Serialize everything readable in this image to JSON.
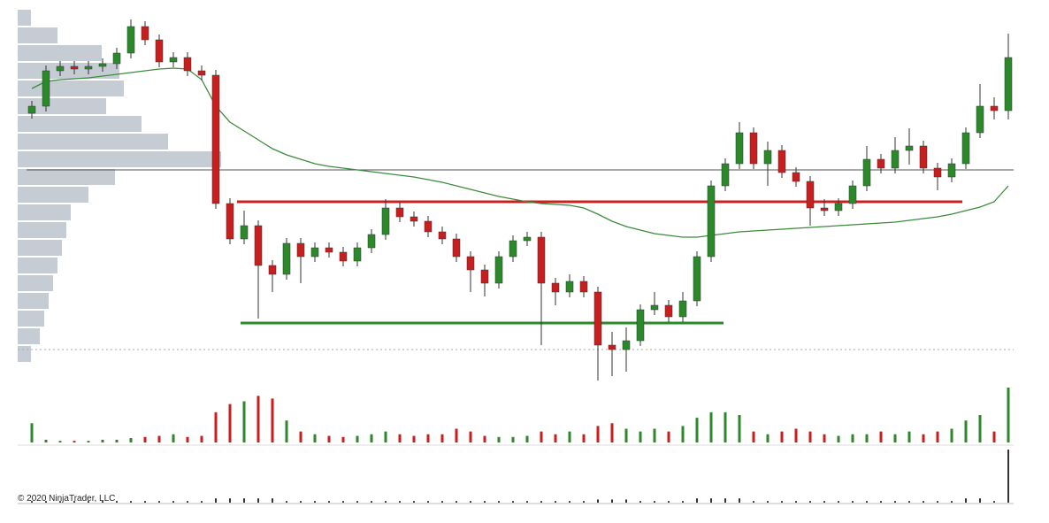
{
  "chart_data": {
    "type": "candlestick",
    "footnote": "© 2020 NinjaTrader, LLC",
    "up_color": "#2a8a2a",
    "down_color": "#c81e1e",
    "ylim": [
      70,
      500
    ],
    "candles": {
      "open": [
        372,
        380,
        420,
        425,
        422,
        425,
        428,
        440,
        470,
        455,
        430,
        435,
        420,
        415,
        270,
        230,
        245,
        200,
        190,
        225,
        210,
        220,
        215,
        205,
        220,
        235,
        265,
        255,
        250,
        238,
        230,
        210,
        195,
        180,
        210,
        228,
        232,
        180,
        170,
        182,
        170,
        110,
        105,
        115,
        150,
        155,
        142,
        160,
        210,
        290,
        315,
        350,
        315,
        330,
        305,
        295,
        265,
        262,
        270,
        290,
        320,
        310,
        330,
        335,
        310,
        300,
        315,
        350,
        380,
        375
      ],
      "high": [
        386,
        426,
        431,
        431,
        431,
        434,
        446,
        478,
        476,
        461,
        441,
        441,
        426,
        421,
        276,
        262,
        251,
        206,
        231,
        231,
        226,
        226,
        221,
        226,
        241,
        275,
        271,
        261,
        256,
        244,
        236,
        216,
        201,
        216,
        234,
        238,
        238,
        186,
        190,
        188,
        176,
        125,
        130,
        156,
        170,
        161,
        170,
        216,
        296,
        321,
        362,
        356,
        340,
        336,
        311,
        301,
        275,
        276,
        296,
        335,
        326,
        345,
        355,
        341,
        316,
        321,
        356,
        405,
        390,
        462
      ],
      "low": [
        366,
        374,
        414,
        416,
        416,
        419,
        422,
        434,
        449,
        424,
        424,
        414,
        409,
        264,
        224,
        224,
        140,
        170,
        184,
        180,
        204,
        209,
        199,
        199,
        214,
        229,
        249,
        244,
        232,
        224,
        204,
        170,
        165,
        174,
        204,
        222,
        110,
        155,
        164,
        164,
        70,
        75,
        80,
        109,
        144,
        136,
        136,
        154,
        204,
        284,
        309,
        309,
        290,
        299,
        289,
        245,
        256,
        256,
        264,
        284,
        304,
        304,
        314,
        304,
        285,
        294,
        309,
        344,
        365,
        365
      ],
      "close": [
        380,
        420,
        425,
        422,
        425,
        428,
        440,
        470,
        455,
        430,
        435,
        420,
        415,
        270,
        230,
        245,
        200,
        190,
        225,
        210,
        220,
        215,
        205,
        220,
        235,
        265,
        255,
        250,
        238,
        230,
        210,
        195,
        180,
        210,
        228,
        232,
        180,
        170,
        182,
        170,
        110,
        105,
        115,
        150,
        155,
        142,
        160,
        210,
        290,
        315,
        350,
        315,
        330,
        305,
        295,
        265,
        262,
        270,
        290,
        320,
        310,
        330,
        335,
        310,
        300,
        315,
        350,
        380,
        375,
        435
      ]
    },
    "vwap": {
      "color": "#3c8c3c",
      "values": [
        400,
        408,
        410,
        411,
        412,
        414,
        416,
        418,
        420,
        422,
        423,
        422,
        410,
        380,
        362,
        352,
        342,
        332,
        325,
        320,
        315,
        312,
        310,
        308,
        306,
        304,
        302,
        300,
        297,
        294,
        290,
        286,
        282,
        278,
        275,
        272,
        270,
        269,
        268,
        265,
        258,
        250,
        244,
        240,
        236,
        234,
        232,
        232,
        234,
        236,
        238,
        239,
        240,
        241,
        242,
        243,
        244,
        245,
        246,
        247,
        248,
        249,
        251,
        253,
        255,
        258,
        262,
        266,
        272,
        290
      ]
    },
    "levels": [
      {
        "value": 272,
        "color": "#cc2020"
      },
      {
        "value": 135,
        "color": "#2a8a2a"
      },
      {
        "value": 308,
        "color": "#555555"
      },
      {
        "value": 105,
        "color": "#aaaaaa"
      }
    ],
    "volume_profile": {
      "color": "#c5ccd4",
      "prices": [
        480,
        460,
        440,
        420,
        400,
        380,
        360,
        340,
        320,
        300,
        280,
        260,
        240,
        220,
        200,
        180,
        160,
        140,
        120,
        100
      ],
      "values": [
        15,
        45,
        95,
        115,
        120,
        100,
        140,
        170,
        230,
        110,
        80,
        60,
        55,
        50,
        45,
        40,
        35,
        30,
        25,
        15
      ]
    },
    "volume": {
      "ylim": [
        0,
        100
      ],
      "values": [
        35,
        5,
        3,
        3,
        3,
        5,
        5,
        8,
        10,
        12,
        15,
        10,
        12,
        55,
        70,
        75,
        85,
        80,
        40,
        20,
        15,
        12,
        10,
        12,
        15,
        20,
        15,
        12,
        15,
        15,
        25,
        20,
        12,
        10,
        10,
        12,
        20,
        15,
        20,
        15,
        30,
        35,
        25,
        20,
        25,
        20,
        30,
        45,
        55,
        55,
        50,
        20,
        15,
        20,
        25,
        20,
        15,
        12,
        15,
        15,
        20,
        15,
        20,
        15,
        20,
        25,
        40,
        50,
        20,
        100
      ]
    },
    "ticks": {
      "ylim": [
        0,
        100
      ],
      "color": "#333333",
      "values": [
        3,
        3,
        3,
        3,
        3,
        3,
        3,
        3,
        3,
        3,
        3,
        3,
        3,
        8,
        8,
        8,
        8,
        8,
        3,
        3,
        3,
        3,
        3,
        3,
        3,
        3,
        3,
        3,
        3,
        3,
        3,
        3,
        3,
        3,
        3,
        3,
        3,
        3,
        3,
        3,
        6,
        6,
        6,
        3,
        3,
        3,
        3,
        8,
        8,
        8,
        8,
        3,
        3,
        3,
        3,
        3,
        3,
        3,
        3,
        3,
        3,
        3,
        3,
        3,
        3,
        3,
        8,
        8,
        3,
        100
      ]
    }
  }
}
